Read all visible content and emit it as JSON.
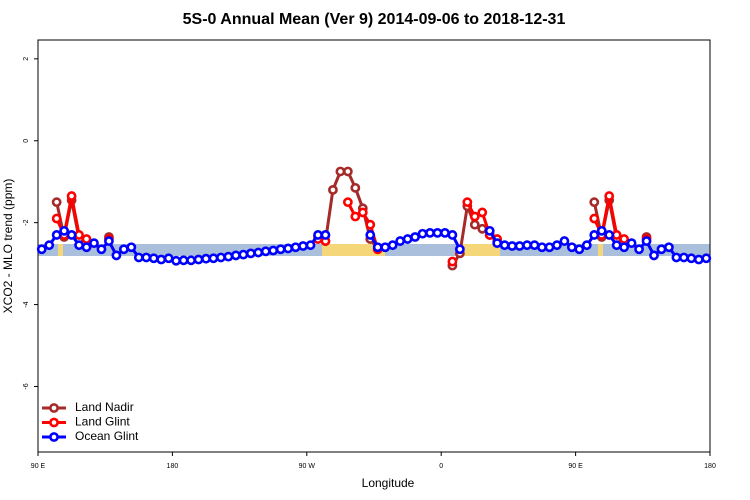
{
  "chart_data": {
    "type": "line",
    "title": "5S-0 Annual Mean (Ver 9)   2014-09-06 to 2018-12-31",
    "x_label": "Longitude",
    "y_label": "XCO2 - MLO trend (ppm)",
    "xlim": [
      90,
      540
    ],
    "ylim": [
      -7.6,
      2.46
    ],
    "xticks": [
      {
        "value": 90,
        "label": "90 E"
      },
      180,
      {
        "value": 270,
        "label": "90 W"
      },
      {
        "value": 360,
        "label": "0"
      },
      {
        "value": 450,
        "label": "90 E"
      },
      {
        "value": 540,
        "label": "180"
      }
    ],
    "yticks": [
      -6,
      -4,
      -2,
      0,
      2
    ],
    "legend": "bottom-left",
    "x": [
      92.5,
      97.5,
      102.5,
      107.5,
      112.5,
      117.5,
      122.5,
      127.5,
      132.5,
      137.5,
      142.5,
      147.5,
      152.5,
      157.5,
      162.5,
      167.5,
      172.5,
      177.5,
      182.5,
      187.5,
      192.5,
      197.5,
      202.5,
      207.5,
      212.5,
      217.5,
      222.5,
      227.5,
      232.5,
      237.5,
      242.5,
      247.5,
      252.5,
      257.5,
      262.5,
      267.5,
      272.5,
      277.5,
      282.5,
      287.5,
      292.5,
      297.5,
      302.5,
      307.5,
      312.5,
      317.5,
      322.5,
      327.5,
      332.5,
      337.5,
      342.5,
      347.5,
      352.5,
      357.5,
      362.5,
      367.5,
      372.5,
      377.5,
      382.5,
      387.5,
      392.5,
      397.5,
      402.5,
      407.5,
      412.5,
      417.5,
      422.5,
      427.5,
      432.5,
      437.5,
      442.5,
      447.5,
      452.5,
      457.5,
      462.5,
      467.5,
      472.5,
      477.5,
      482.5,
      487.5,
      492.5,
      497.5,
      502.5,
      507.5,
      512.5,
      517.5,
      522.5,
      527.5,
      532.5,
      537.5
    ],
    "series": [
      {
        "name": "Land Nadir",
        "color": "#a52a2a",
        "values": [
          null,
          null,
          -1.5,
          -2.35,
          -1.45,
          -2.4,
          null,
          null,
          null,
          -2.35,
          null,
          null,
          null,
          null,
          null,
          null,
          null,
          null,
          null,
          null,
          null,
          null,
          null,
          null,
          null,
          null,
          null,
          null,
          null,
          null,
          null,
          null,
          null,
          null,
          null,
          null,
          null,
          -2.35,
          -2.45,
          -1.2,
          -0.75,
          -0.75,
          -1.15,
          -1.65,
          -2.4,
          -2.65,
          null,
          null,
          null,
          null,
          null,
          null,
          null,
          null,
          null,
          -3.05,
          -2.75,
          -1.6,
          -2.05,
          -2.15,
          -2.3,
          -2.45,
          null,
          null,
          null,
          null,
          null,
          null,
          null,
          null,
          null,
          null,
          null,
          null,
          -1.5,
          -2.35,
          -1.45,
          -2.4,
          null,
          null,
          null,
          -2.35,
          null,
          null,
          null,
          null,
          null,
          null,
          null,
          null
        ]
      },
      {
        "name": "Land Glint",
        "color": "#ff0000",
        "values": [
          null,
          null,
          -1.9,
          -2.3,
          -1.35,
          -2.3,
          -2.4,
          null,
          null,
          -2.4,
          null,
          null,
          null,
          null,
          null,
          null,
          null,
          null,
          null,
          null,
          null,
          null,
          null,
          null,
          null,
          null,
          null,
          null,
          null,
          null,
          null,
          null,
          null,
          null,
          null,
          null,
          null,
          -2.4,
          -2.45,
          null,
          null,
          -1.5,
          -1.85,
          -1.75,
          -2.05,
          -2.65,
          null,
          null,
          null,
          null,
          null,
          null,
          null,
          null,
          null,
          -2.95,
          null,
          -1.5,
          -1.85,
          -1.75,
          -2.3,
          -2.4,
          null,
          null,
          null,
          null,
          null,
          null,
          null,
          null,
          null,
          null,
          null,
          null,
          -1.9,
          -2.3,
          -1.35,
          -2.3,
          -2.4,
          null,
          null,
          -2.4,
          null,
          null,
          null,
          null,
          null,
          null,
          null,
          null
        ]
      },
      {
        "name": "Ocean Glint",
        "color": "#0000ff",
        "values": [
          -2.65,
          -2.55,
          -2.3,
          -2.2,
          -2.3,
          -2.55,
          -2.6,
          -2.5,
          -2.65,
          -2.45,
          -2.8,
          -2.65,
          -2.6,
          -2.85,
          -2.85,
          -2.87,
          -2.9,
          -2.87,
          -2.93,
          -2.92,
          -2.92,
          -2.9,
          -2.88,
          -2.87,
          -2.85,
          -2.83,
          -2.8,
          -2.78,
          -2.75,
          -2.73,
          -2.7,
          -2.68,
          -2.65,
          -2.63,
          -2.6,
          -2.57,
          -2.55,
          -2.3,
          -2.3,
          null,
          null,
          null,
          null,
          null,
          -2.3,
          -2.6,
          -2.6,
          -2.55,
          -2.45,
          -2.4,
          -2.35,
          -2.27,
          -2.25,
          -2.25,
          -2.25,
          -2.3,
          -2.65,
          null,
          null,
          null,
          -2.2,
          -2.5,
          -2.55,
          -2.57,
          -2.57,
          -2.55,
          -2.55,
          -2.6,
          -2.6,
          -2.55,
          -2.45,
          -2.6,
          -2.65,
          -2.55,
          -2.3,
          -2.2,
          -2.3,
          -2.55,
          -2.6,
          -2.5,
          -2.65,
          -2.45,
          -2.8,
          -2.65,
          -2.6,
          -2.85,
          -2.85,
          -2.87,
          -2.9,
          -2.87
        ]
      }
    ]
  }
}
